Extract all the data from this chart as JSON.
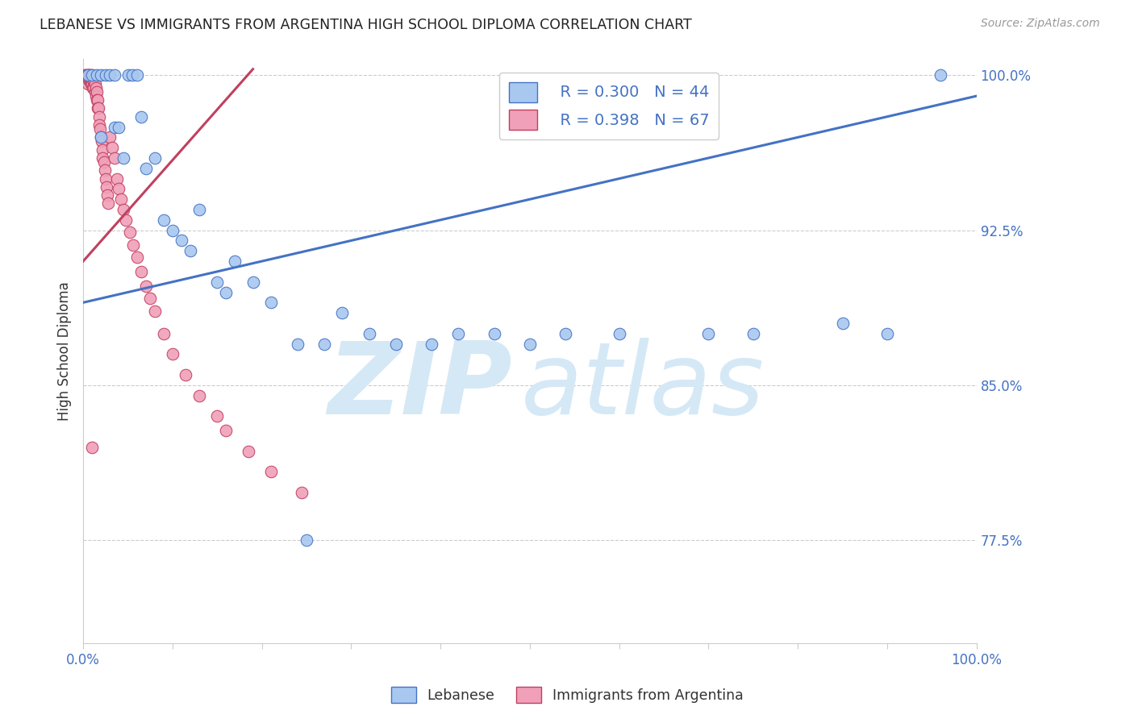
{
  "title": "LEBANESE VS IMMIGRANTS FROM ARGENTINA HIGH SCHOOL DIPLOMA CORRELATION CHART",
  "source": "Source: ZipAtlas.com",
  "ylabel": "High School Diploma",
  "xlim": [
    0.0,
    1.0
  ],
  "ylim": [
    0.725,
    1.008
  ],
  "yticks": [
    0.775,
    0.85,
    0.925,
    1.0
  ],
  "ytick_labels": [
    "77.5%",
    "85.0%",
    "92.5%",
    "100.0%"
  ],
  "xticks": [
    0.0,
    0.1,
    0.2,
    0.3,
    0.4,
    0.5,
    0.6,
    0.7,
    0.8,
    0.9,
    1.0
  ],
  "xtick_labels": [
    "0.0%",
    "",
    "",
    "",
    "",
    "",
    "",
    "",
    "",
    "",
    "100.0%"
  ],
  "legend_R1": "R = 0.300",
  "legend_N1": "N = 44",
  "legend_R2": "R = 0.398",
  "legend_N2": "N = 67",
  "blue_color": "#A8C8F0",
  "pink_color": "#F0A0B8",
  "blue_line_color": "#4472C4",
  "pink_line_color": "#C04060",
  "watermark_zip": "ZIP",
  "watermark_atlas": "atlas",
  "watermark_color": "#D5E8F5",
  "blue_x": [
    0.005,
    0.01,
    0.015,
    0.02,
    0.02,
    0.025,
    0.03,
    0.035,
    0.035,
    0.04,
    0.045,
    0.05,
    0.055,
    0.06,
    0.065,
    0.07,
    0.08,
    0.09,
    0.1,
    0.11,
    0.12,
    0.13,
    0.15,
    0.16,
    0.17,
    0.19,
    0.21,
    0.24,
    0.27,
    0.29,
    0.32,
    0.35,
    0.39,
    0.42,
    0.46,
    0.5,
    0.54,
    0.6,
    0.7,
    0.75,
    0.85,
    0.9,
    0.96,
    0.25
  ],
  "blue_y": [
    1.0,
    1.0,
    1.0,
    1.0,
    0.97,
    1.0,
    1.0,
    1.0,
    0.975,
    0.975,
    0.96,
    1.0,
    1.0,
    1.0,
    0.98,
    0.955,
    0.96,
    0.93,
    0.925,
    0.92,
    0.915,
    0.935,
    0.9,
    0.895,
    0.91,
    0.9,
    0.89,
    0.87,
    0.87,
    0.885,
    0.875,
    0.87,
    0.87,
    0.875,
    0.875,
    0.87,
    0.875,
    0.875,
    0.875,
    0.875,
    0.88,
    0.875,
    1.0,
    0.775
  ],
  "pink_x": [
    0.002,
    0.003,
    0.004,
    0.005,
    0.005,
    0.005,
    0.006,
    0.006,
    0.007,
    0.007,
    0.008,
    0.008,
    0.009,
    0.009,
    0.01,
    0.01,
    0.011,
    0.011,
    0.012,
    0.012,
    0.013,
    0.013,
    0.014,
    0.014,
    0.015,
    0.015,
    0.016,
    0.016,
    0.017,
    0.018,
    0.018,
    0.019,
    0.02,
    0.021,
    0.022,
    0.022,
    0.023,
    0.024,
    0.025,
    0.026,
    0.027,
    0.028,
    0.03,
    0.032,
    0.035,
    0.038,
    0.04,
    0.042,
    0.045,
    0.048,
    0.052,
    0.056,
    0.06,
    0.065,
    0.07,
    0.075,
    0.08,
    0.09,
    0.1,
    0.115,
    0.13,
    0.15,
    0.16,
    0.185,
    0.21,
    0.245,
    0.01
  ],
  "pink_y": [
    1.0,
    1.0,
    1.0,
    1.0,
    0.998,
    0.996,
    1.0,
    0.998,
    1.0,
    0.998,
    1.0,
    0.998,
    0.998,
    0.996,
    1.0,
    0.996,
    0.998,
    0.994,
    0.998,
    0.994,
    0.996,
    0.992,
    0.994,
    0.99,
    0.992,
    0.988,
    0.988,
    0.984,
    0.984,
    0.98,
    0.976,
    0.974,
    0.97,
    0.968,
    0.964,
    0.96,
    0.958,
    0.954,
    0.95,
    0.946,
    0.942,
    0.938,
    0.97,
    0.965,
    0.96,
    0.95,
    0.945,
    0.94,
    0.935,
    0.93,
    0.924,
    0.918,
    0.912,
    0.905,
    0.898,
    0.892,
    0.886,
    0.875,
    0.865,
    0.855,
    0.845,
    0.835,
    0.828,
    0.818,
    0.808,
    0.798,
    0.82
  ],
  "blue_trend_x": [
    0.0,
    1.0
  ],
  "blue_trend_y": [
    0.89,
    0.99
  ],
  "pink_trend_x": [
    0.0,
    0.19
  ],
  "pink_trend_y": [
    0.91,
    1.003
  ]
}
